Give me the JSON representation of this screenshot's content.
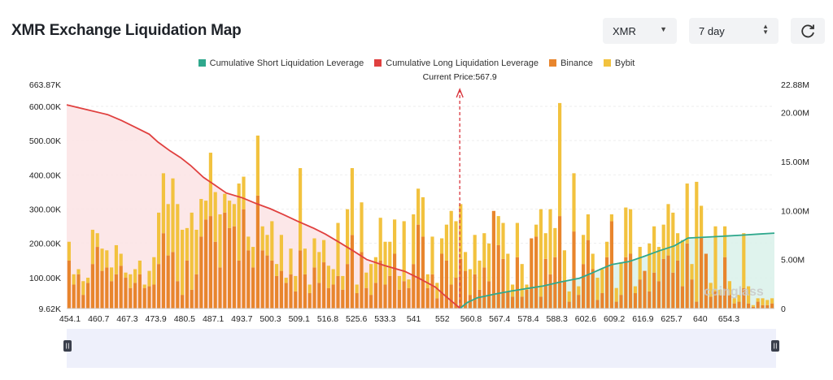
{
  "header": {
    "title": "XMR Exchange Liquidation Map",
    "symbol_select": "XMR",
    "period_select": "7 day",
    "refresh_icon": "refresh-icon"
  },
  "colors": {
    "short_cum": "#2fa88d",
    "long_cum": "#e0403f",
    "binance": "#e8852d",
    "bybit": "#f2c23e",
    "current_price_line": "#d9363e"
  },
  "chart_data": {
    "type": "bar",
    "legend": [
      "Cumulative Short Liquidation Leverage",
      "Cumulative Long Liquidation Leverage",
      "Binance",
      "Bybit"
    ],
    "current_price_label": "Current Price:567.9",
    "current_price": 567.9,
    "x_ticks": [
      "454.1",
      "460.7",
      "467.3",
      "473.9",
      "480.5",
      "487.1",
      "493.7",
      "500.3",
      "509.1",
      "516.8",
      "525.6",
      "533.3",
      "541",
      "552",
      "560.8",
      "567.4",
      "578.4",
      "588.3",
      "602.6",
      "609.2",
      "616.9",
      "625.7",
      "640",
      "654.3"
    ],
    "x_range": [
      454.1,
      659.0
    ],
    "y_left_ticks": [
      "663.87K",
      "600.00K",
      "500.00K",
      "400.00K",
      "300.00K",
      "200.00K",
      "100.00K",
      "9.62K"
    ],
    "y_left_range": [
      9620,
      663870
    ],
    "y_right_ticks": [
      "22.88M",
      "20.00M",
      "15.00M",
      "10.00M",
      "5.00M",
      "0"
    ],
    "y_right_range": [
      0,
      22880000
    ],
    "cumulative_long": {
      "name": "Cumulative Long Liquidation Leverage",
      "points": [
        [
          454.1,
          20.8
        ],
        [
          460,
          20.3
        ],
        [
          466,
          19.8
        ],
        [
          470,
          19.2
        ],
        [
          474,
          18.5
        ],
        [
          478,
          17.8
        ],
        [
          480.5,
          17.0
        ],
        [
          484,
          16.1
        ],
        [
          487.1,
          15.4
        ],
        [
          490,
          14.6
        ],
        [
          493.7,
          13.4
        ],
        [
          497,
          12.6
        ],
        [
          500.3,
          11.8
        ],
        [
          505,
          11.3
        ],
        [
          509.1,
          10.7
        ],
        [
          513,
          10.2
        ],
        [
          516.8,
          9.6
        ],
        [
          521,
          8.9
        ],
        [
          525.6,
          8.2
        ],
        [
          529,
          7.6
        ],
        [
          533.3,
          6.7
        ],
        [
          537,
          5.9
        ],
        [
          541,
          5.0
        ],
        [
          546,
          4.4
        ],
        [
          552,
          3.8
        ],
        [
          556,
          3.1
        ],
        [
          560.8,
          2.2
        ],
        [
          564,
          1.2
        ],
        [
          567.4,
          0.2
        ],
        [
          567.9,
          0
        ]
      ]
    },
    "cumulative_short": {
      "name": "Cumulative Short Liquidation Leverage",
      "points": [
        [
          567.9,
          0
        ],
        [
          570,
          0.6
        ],
        [
          573,
          1.1
        ],
        [
          578.4,
          1.5
        ],
        [
          583,
          1.8
        ],
        [
          588.3,
          2.1
        ],
        [
          592,
          2.3
        ],
        [
          597,
          2.7
        ],
        [
          602.6,
          3.1
        ],
        [
          606,
          3.6
        ],
        [
          609.2,
          4.1
        ],
        [
          612,
          4.5
        ],
        [
          616.9,
          4.8
        ],
        [
          621,
          5.3
        ],
        [
          625.7,
          5.9
        ],
        [
          630,
          6.4
        ],
        [
          634,
          7.2
        ],
        [
          640,
          7.3
        ],
        [
          645,
          7.4
        ],
        [
          650,
          7.5
        ],
        [
          654.3,
          7.6
        ],
        [
          659,
          7.7
        ]
      ]
    },
    "bars": {
      "note": "per price bucket: [binance, bybit] in liquidation leverage units",
      "series": [
        {
          "name": "Binance",
          "values": [
            140000,
            70000,
            100000,
            40000,
            75000,
            130000,
            180000,
            110000,
            120000,
            80000,
            100000,
            125000,
            90000,
            60000,
            75000,
            100000,
            60000,
            65000,
            70000,
            130000,
            220000,
            155000,
            165000,
            80000,
            40000,
            140000,
            55000,
            100000,
            210000,
            260000,
            270000,
            195000,
            120000,
            280000,
            235000,
            240000,
            140000,
            290000,
            170000,
            120000,
            330000,
            170000,
            155000,
            140000,
            95000,
            110000,
            75000,
            100000,
            50000,
            170000,
            100000,
            45000,
            120000,
            75000,
            135000,
            60000,
            70000,
            95000,
            55000,
            130000,
            215000,
            45000,
            165000,
            60000,
            40000,
            75000,
            140000,
            70000,
            95000,
            160000,
            55000,
            80000,
            60000,
            130000,
            245000,
            210000,
            60000,
            100000,
            30000,
            160000,
            140000,
            70000,
            90000,
            145000,
            110000,
            40000,
            100000,
            55000,
            120000,
            80000,
            285000,
            185000,
            145000,
            50000,
            35000,
            150000,
            35000,
            55000,
            205000,
            210000,
            35000,
            145000,
            100000,
            150000,
            270000,
            80000,
            20000,
            225000,
            40000,
            130000,
            200000,
            115000,
            25000,
            45000,
            150000,
            255000,
            20000,
            40000,
            150000,
            160000,
            45000,
            85000,
            110000,
            50000,
            105000,
            80000,
            145000,
            155000,
            105000,
            140000,
            65000,
            190000,
            85000,
            20000,
            210000,
            160000,
            35000,
            50000,
            40000,
            150000,
            40000,
            15000,
            20000,
            60000,
            15000,
            5000,
            20000,
            10000,
            10000,
            15000
          ]
        },
        {
          "name": "Bybit",
          "values": [
            55000,
            30000,
            15000,
            40000,
            15000,
            100000,
            40000,
            65000,
            50000,
            40000,
            85000,
            35000,
            15000,
            40000,
            40000,
            40000,
            10000,
            45000,
            80000,
            150000,
            175000,
            150000,
            215000,
            225000,
            190000,
            95000,
            225000,
            130000,
            110000,
            55000,
            185000,
            145000,
            155000,
            55000,
            80000,
            65000,
            225000,
            95000,
            40000,
            60000,
            175000,
            70000,
            60000,
            115000,
            35000,
            105000,
            15000,
            75000,
            45000,
            240000,
            75000,
            25000,
            85000,
            90000,
            65000,
            65000,
            45000,
            155000,
            40000,
            160000,
            195000,
            25000,
            145000,
            45000,
            90000,
            75000,
            125000,
            125000,
            100000,
            100000,
            40000,
            175000,
            25000,
            145000,
            105000,
            115000,
            40000,
            110000,
            45000,
            45000,
            105000,
            215000,
            165000,
            160000,
            55000,
            75000,
            115000,
            85000,
            100000,
            110000,
            0,
            85000,
            105000,
            110000,
            35000,
            100000,
            95000,
            15000,
            0,
            35000,
            255000,
            75000,
            190000,
            85000,
            330000,
            90000,
            30000,
            170000,
            25000,
            85000,
            75000,
            45000,
            65000,
            70000,
            45000,
            20000,
            40000,
            95000,
            145000,
            130000,
            20000,
            95000,
            0,
            140000,
            135000,
            100000,
            100000,
            150000,
            175000,
            80000,
            135000,
            175000,
            45000,
            350000,
            90000,
            0,
            40000,
            190000,
            15000,
            90000,
            40000,
            15000,
            20000,
            160000,
            50000,
            5000,
            10000,
            20000,
            15000,
            15000
          ]
        }
      ]
    },
    "grid": true,
    "watermark": "coinglass"
  }
}
